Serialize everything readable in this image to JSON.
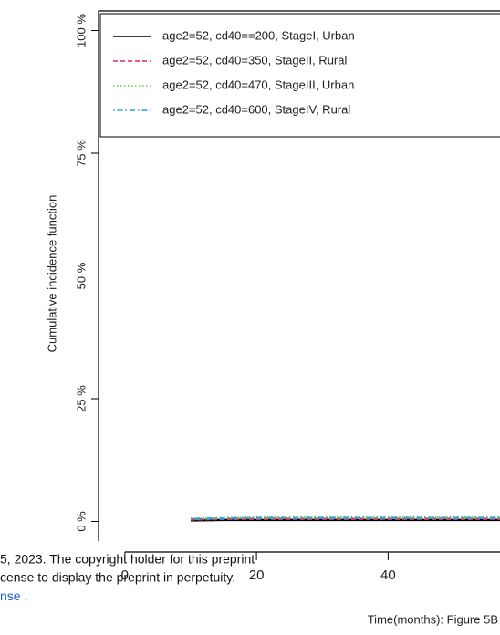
{
  "chart_data": {
    "type": "line",
    "y_label": "Cumulative incidence function",
    "x_label": "Time(months): Figure 5B",
    "x": [
      10,
      15,
      20,
      25,
      30,
      35,
      40,
      45,
      50,
      55,
      57
    ],
    "series": [
      {
        "name": "age2=52,  cd40==200, StageI, Urban",
        "color": "#000000",
        "dash": "solid",
        "values": [
          0.2,
          0.3,
          0.3,
          0.3,
          0.3,
          0.3,
          0.3,
          0.3,
          0.3,
          0.3,
          0.3
        ]
      },
      {
        "name": "age2=52, cd40=350, StageII, Rural",
        "color": "#e8275a",
        "dash": "dashed",
        "values": [
          0.4,
          0.5,
          0.5,
          0.5,
          0.5,
          0.5,
          0.5,
          0.5,
          0.5,
          0.5,
          0.5
        ]
      },
      {
        "name": "age2=52, cd40=470, StageIII, Urban",
        "color": "#6fcf3c",
        "dash": "dotted",
        "values": [
          0.6,
          0.7,
          0.8,
          0.8,
          0.8,
          0.8,
          0.8,
          0.8,
          0.8,
          0.8,
          0.8
        ]
      },
      {
        "name": "age2=52, cd40=600, StageIV, Rural",
        "color": "#2aa3e0",
        "dash": "dotdash",
        "values": [
          0.5,
          0.6,
          0.7,
          0.7,
          0.7,
          0.7,
          0.7,
          0.7,
          0.7,
          0.7,
          0.7
        ]
      }
    ],
    "xlim": [
      -4,
      57
    ],
    "xticks": [
      0,
      20,
      40
    ],
    "ylim": [
      -4,
      104
    ],
    "yticks": [
      {
        "value": 0,
        "label": "0 %"
      },
      {
        "value": 25,
        "label": "25 %"
      },
      {
        "value": 50,
        "label": "50 %"
      },
      {
        "value": 75,
        "label": "75 %"
      },
      {
        "value": 100,
        "label": "100 %"
      }
    ],
    "legend": "top-right"
  },
  "overlay_text": [
    "5, 2023. The copyright holder for this preprint",
    "cense to display the preprint in perpetuity.",
    "nse",
    "."
  ]
}
